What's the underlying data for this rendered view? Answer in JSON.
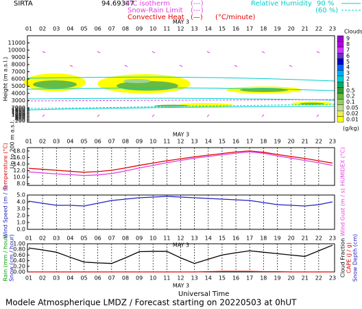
{
  "header": {
    "station": "SIRTA",
    "code": "94.69347",
    "isotherm": "0°C isotherm",
    "isotherm_key": "(---)",
    "snow_rain": "Snow-Rain Limit",
    "snow_rain_key": "(---)",
    "convective": "Convective Heat",
    "convective_key": "(—)",
    "convective_unit": "(°C/minute)",
    "humidity": "Relative Humidity",
    "humidity_90": "90 %",
    "humidity_60": "(60 %)"
  },
  "chart_data": [
    {
      "type": "contour",
      "date": "MAY 3",
      "categories": [
        "01",
        "02",
        "03",
        "04",
        "05",
        "06",
        "07",
        "08",
        "09",
        "10",
        "11",
        "12",
        "13",
        "14",
        "15",
        "16",
        "17",
        "18",
        "19",
        "20",
        "21",
        "22",
        "23"
      ],
      "ylabel": "Height (m a.s.l.)",
      "note": "Up to 200 m a.s.l.",
      "ylim": [
        0,
        12000
      ],
      "yticks": [
        200,
        400,
        600,
        800,
        1000,
        1200,
        1400,
        1600,
        1800,
        2000,
        3000,
        4000,
        5000,
        6000,
        7000,
        8000,
        9000,
        10000,
        11000
      ],
      "colorbar": {
        "title": "Clouds",
        "unit": "(g/kg)",
        "levels": [
          9,
          8,
          7,
          6,
          5,
          4,
          3,
          2,
          1,
          0.5,
          0.2,
          0.1,
          0.05,
          0.02,
          0.01
        ],
        "colors": [
          "#9900cc",
          "#b000e0",
          "#cc33ff",
          "#6633cc",
          "#0000cc",
          "#0066ff",
          "#00aaff",
          "#00cccc",
          "#00aa66",
          "#339933",
          "#66bb44",
          "#99cc66",
          "#bbdd99",
          "#eeee55",
          "#ffff00"
        ]
      }
    },
    {
      "type": "line",
      "date": "MAY 3",
      "categories": [
        "01",
        "02",
        "03",
        "04",
        "05",
        "06",
        "07",
        "08",
        "09",
        "10",
        "11",
        "12",
        "13",
        "14",
        "15",
        "16",
        "17",
        "18",
        "19",
        "20",
        "21",
        "22",
        "23"
      ],
      "ylim": [
        7.5,
        19
      ],
      "yticks": [
        {
          "value": 8,
          "label": "8.0"
        },
        {
          "value": 10,
          "label": "10.0"
        },
        {
          "value": 12,
          "label": "12.0"
        },
        {
          "value": 14,
          "label": "14.0"
        },
        {
          "value": 16,
          "label": "16.0"
        },
        {
          "value": 18,
          "label": "18.0"
        }
      ],
      "series": [
        {
          "name": "Temperature (°C)",
          "color": "#e00000",
          "axis_side": "left",
          "values": [
            12.7,
            12.4,
            12.1,
            11.8,
            11.5,
            11.7,
            12.1,
            12.8,
            13.6,
            14.3,
            15.0,
            15.6,
            16.2,
            16.7,
            17.2,
            17.7,
            18.0,
            17.6,
            16.9,
            16.3,
            15.7,
            15.0,
            14.3
          ]
        },
        {
          "name": "HUMIDEX (°C)",
          "color": "#e040e0",
          "axis_side": "right",
          "values": [
            11.6,
            11.3,
            11.0,
            10.8,
            10.5,
            10.7,
            11.1,
            11.9,
            12.8,
            13.6,
            14.4,
            15.1,
            15.8,
            16.3,
            16.8,
            17.3,
            17.7,
            17.3,
            16.5,
            15.8,
            15.1,
            14.4,
            13.6
          ]
        }
      ]
    },
    {
      "type": "line",
      "date": "MAY 3",
      "categories": [
        "01",
        "02",
        "03",
        "04",
        "05",
        "06",
        "07",
        "08",
        "09",
        "10",
        "11",
        "12",
        "13",
        "14",
        "15",
        "16",
        "17",
        "18",
        "19",
        "20",
        "21",
        "22",
        "23"
      ],
      "ylim": [
        0,
        5
      ],
      "yticks": [
        {
          "value": 0,
          "label": "0.0"
        },
        {
          "value": 1,
          "label": "1.0"
        },
        {
          "value": 2,
          "label": "2.0"
        },
        {
          "value": 3,
          "label": "3.0"
        },
        {
          "value": 4,
          "label": "4.0"
        },
        {
          "value": 5,
          "label": "5.0"
        }
      ],
      "series": [
        {
          "name": "Wind Speed (m / s)",
          "color": "#2020c0",
          "axis_side": "left",
          "values": [
            4.1,
            3.8,
            3.5,
            3.5,
            3.4,
            3.8,
            4.2,
            4.4,
            4.6,
            4.7,
            4.8,
            4.7,
            4.6,
            4.5,
            4.4,
            4.3,
            4.2,
            3.9,
            3.6,
            3.5,
            3.4,
            3.6,
            4.0
          ]
        }
      ],
      "y2label": "Wind Gust (m / s)",
      "y2color": "#e040e0"
    },
    {
      "type": "line",
      "date": "MAY 3",
      "categories": [
        "01",
        "02",
        "03",
        "04",
        "05",
        "06",
        "07",
        "08",
        "09",
        "10",
        "11",
        "12",
        "13",
        "14",
        "15",
        "16",
        "17",
        "18",
        "19",
        "20",
        "21",
        "22",
        "23"
      ],
      "ylim": [
        0,
        1
      ],
      "yticks": [
        {
          "value": 0,
          "label": "0.00"
        },
        {
          "value": 0.2,
          "label": "0.20"
        },
        {
          "value": 0.4,
          "label": "0.40"
        },
        {
          "value": 0.6,
          "label": "0.60"
        },
        {
          "value": 0.8,
          "label": "0.80"
        },
        {
          "value": 1,
          "label": "1.00"
        }
      ],
      "series": [
        {
          "name": "Cloud Fraction",
          "color": "#000000",
          "axis_side": "right",
          "values": [
            0.85,
            0.78,
            0.7,
            0.52,
            0.35,
            0.32,
            0.3,
            0.5,
            0.72,
            0.73,
            0.73,
            0.5,
            0.3,
            0.45,
            0.6,
            0.68,
            0.75,
            0.7,
            0.65,
            0.6,
            0.55,
            0.75,
            0.95
          ]
        },
        {
          "name": "CAPE (J / g)",
          "color": "#e00000",
          "axis_side": "right",
          "values": [
            0,
            0,
            0,
            0,
            0,
            0,
            0,
            0,
            0,
            0,
            0,
            0,
            0,
            0.01,
            0.02,
            0.02,
            0.02,
            0.01,
            0.01,
            0,
            0,
            0,
            0
          ]
        }
      ],
      "left_labels": [
        {
          "text": "Rain (mm / hour)",
          "color": "#00a000"
        },
        {
          "text": "Snow (cm / hour)",
          "color": "#2020c0"
        }
      ],
      "right_labels": [
        {
          "text": "Snow Depth (cm)",
          "color": "#2020c0"
        }
      ]
    }
  ],
  "footer": {
    "time_axis": "Universal Time",
    "caption": "Modele Atmospherique LMDZ / Forecast starting on 20220503 at 0hUT"
  }
}
